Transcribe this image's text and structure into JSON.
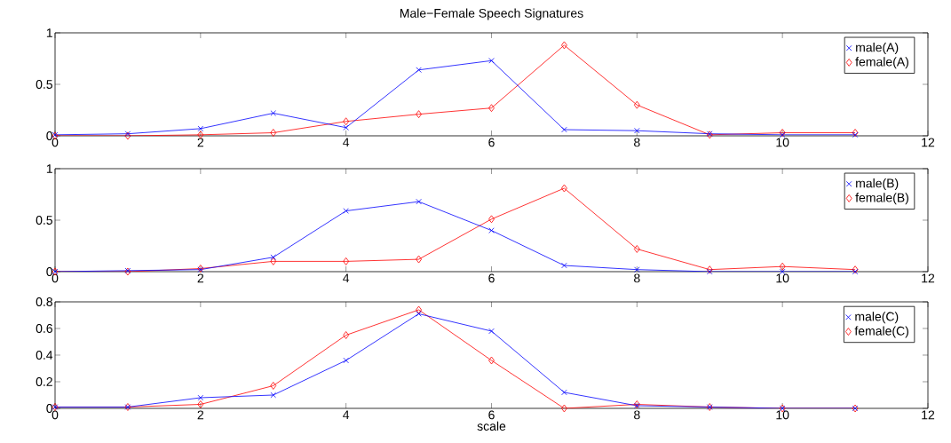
{
  "chart_data": [
    {
      "type": "line",
      "title": "Male−Female Speech Signatures",
      "x": [
        0,
        1,
        2,
        3,
        4,
        5,
        6,
        7,
        8,
        9,
        10,
        11
      ],
      "xlim": [
        0,
        12
      ],
      "xticks": [
        0,
        2,
        4,
        6,
        8,
        10,
        12
      ],
      "ylim": [
        0,
        1
      ],
      "yticks": [
        0,
        0.5,
        1
      ],
      "legend": "top right",
      "grid": false,
      "series": [
        {
          "name": "male(A)",
          "color": "#0000ff",
          "marker": "cross",
          "values": [
            0.01,
            0.02,
            0.07,
            0.22,
            0.08,
            0.64,
            0.73,
            0.06,
            0.05,
            0.02,
            0.01,
            0.01
          ]
        },
        {
          "name": "female(A)",
          "color": "#ff0000",
          "marker": "diamond",
          "values": [
            0.0,
            0.0,
            0.01,
            0.03,
            0.14,
            0.21,
            0.27,
            0.88,
            0.3,
            0.01,
            0.03,
            0.03
          ]
        }
      ]
    },
    {
      "type": "line",
      "x": [
        0,
        1,
        2,
        3,
        4,
        5,
        6,
        7,
        8,
        9,
        10,
        11
      ],
      "xlim": [
        0,
        12
      ],
      "xticks": [
        0,
        2,
        4,
        6,
        8,
        10,
        12
      ],
      "ylim": [
        0,
        1
      ],
      "yticks": [
        0,
        0.5,
        1
      ],
      "legend": "top right",
      "grid": false,
      "series": [
        {
          "name": "male(B)",
          "color": "#0000ff",
          "marker": "cross",
          "values": [
            0.0,
            0.01,
            0.02,
            0.14,
            0.59,
            0.68,
            0.4,
            0.06,
            0.02,
            0.0,
            0.0,
            0.0
          ]
        },
        {
          "name": "female(B)",
          "color": "#ff0000",
          "marker": "diamond",
          "values": [
            0.0,
            0.0,
            0.03,
            0.1,
            0.1,
            0.12,
            0.51,
            0.81,
            0.22,
            0.02,
            0.05,
            0.02
          ]
        }
      ]
    },
    {
      "type": "line",
      "xlabel": "scale",
      "x": [
        0,
        1,
        2,
        3,
        4,
        5,
        6,
        7,
        8,
        9,
        10,
        11
      ],
      "xlim": [
        0,
        12
      ],
      "xticks": [
        0,
        2,
        4,
        6,
        8,
        10,
        12
      ],
      "ylim": [
        0,
        0.8
      ],
      "yticks": [
        0,
        0.2,
        0.4,
        0.6,
        0.8
      ],
      "legend": "top right",
      "grid": false,
      "series": [
        {
          "name": "male(C)",
          "color": "#0000ff",
          "marker": "cross",
          "values": [
            0.01,
            0.01,
            0.08,
            0.1,
            0.36,
            0.71,
            0.58,
            0.12,
            0.02,
            0.01,
            0.0,
            0.0
          ]
        },
        {
          "name": "female(C)",
          "color": "#ff0000",
          "marker": "diamond",
          "values": [
            0.01,
            0.01,
            0.03,
            0.17,
            0.55,
            0.74,
            0.36,
            0.0,
            0.03,
            0.01,
            0.0,
            0.0
          ]
        }
      ]
    }
  ]
}
